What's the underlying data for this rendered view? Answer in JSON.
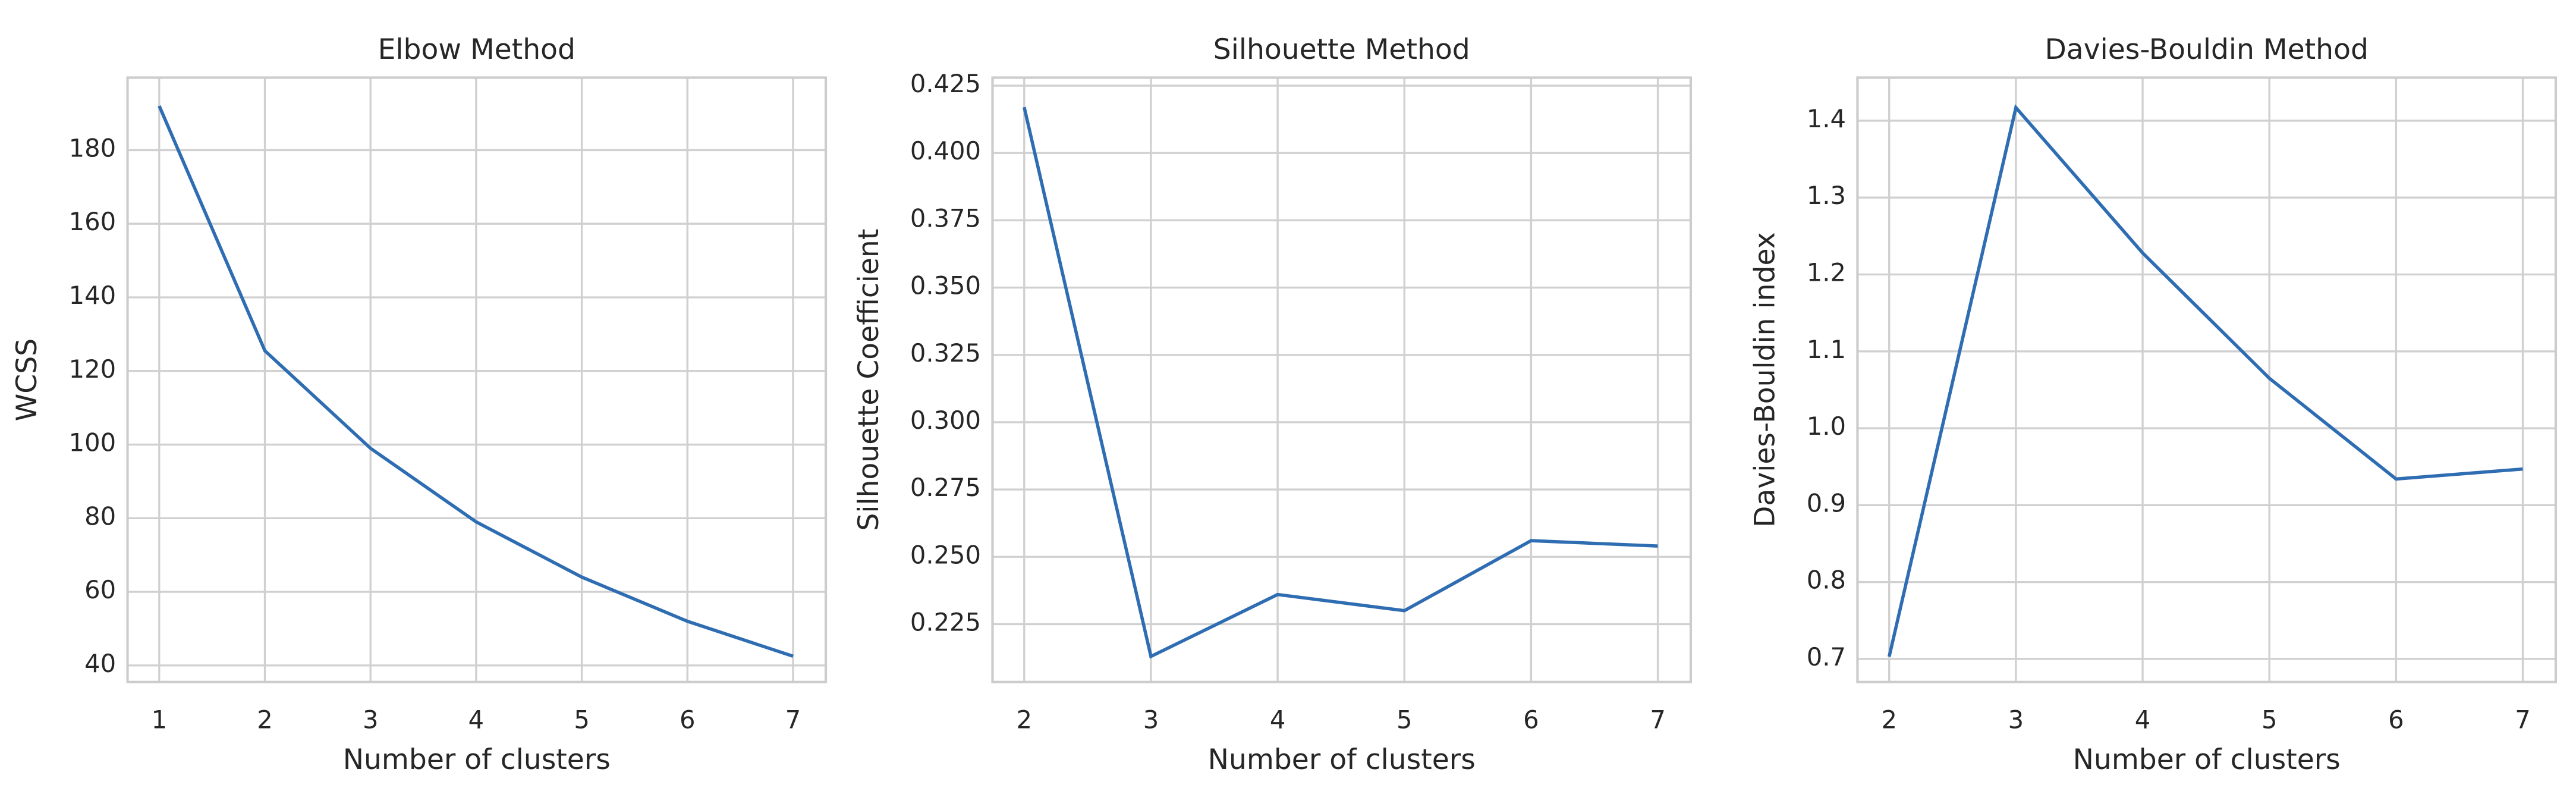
{
  "chart_data": [
    {
      "type": "line",
      "title": "Elbow Method",
      "xlabel": "Number of clusters",
      "ylabel": "WCSS",
      "x": [
        1,
        2,
        3,
        4,
        5,
        6,
        7
      ],
      "series": [
        {
          "color": "#2f6db3",
          "values": [
            192,
            125.5,
            99,
            79,
            64,
            52,
            42.5
          ]
        }
      ],
      "xlim": [
        0.7,
        7.31
      ],
      "xticks": [
        1,
        2,
        3,
        4,
        5,
        6,
        7
      ],
      "ylim": [
        35.5,
        199.7
      ],
      "yticks": [
        40,
        60,
        80,
        100,
        120,
        140,
        160,
        180
      ],
      "grid": true
    },
    {
      "type": "line",
      "title": "Silhouette Method",
      "xlabel": "Number of clusters",
      "ylabel": "Silhouette Coefficient",
      "x": [
        2,
        3,
        4,
        5,
        6,
        7
      ],
      "series": [
        {
          "color": "#2f6db3",
          "values": [
            0.417,
            0.213,
            0.236,
            0.23,
            0.256,
            0.254
          ]
        }
      ],
      "xlim": [
        1.75,
        7.26
      ],
      "xticks": [
        2,
        3,
        4,
        5,
        6,
        7
      ],
      "ylim": [
        0.2035,
        0.428
      ],
      "yticks": [
        0.225,
        {
          "value": 0.25,
          "label": "0.250"
        },
        0.275,
        {
          "value": 0.3,
          "label": "0.300"
        },
        0.325,
        {
          "value": 0.35,
          "label": "0.350"
        },
        0.375,
        {
          "value": 0.4,
          "label": "0.400"
        },
        0.425
      ],
      "grid": true
    },
    {
      "type": "line",
      "title": "Davies-Bouldin Method",
      "xlabel": "Number of clusters",
      "ylabel": "Davies-Bouldin index",
      "x": [
        2,
        3,
        4,
        5,
        6,
        7
      ],
      "series": [
        {
          "color": "#2f6db3",
          "values": [
            0.703,
            1.417,
            1.228,
            1.065,
            0.934,
            0.947
          ]
        }
      ],
      "xlim": [
        1.75,
        7.26
      ],
      "xticks": [
        2,
        3,
        4,
        5,
        6,
        7
      ],
      "ylim": [
        0.67,
        1.456
      ],
      "yticks": [
        0.7,
        0.8,
        0.9,
        {
          "value": 1,
          "label": "1.0"
        },
        1.1,
        1.2,
        1.3,
        1.4
      ],
      "grid": true
    }
  ]
}
